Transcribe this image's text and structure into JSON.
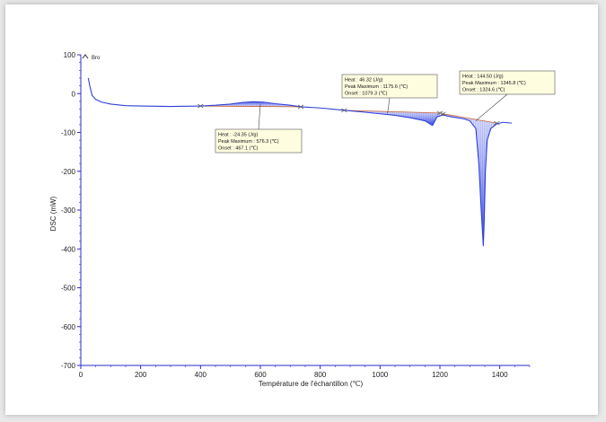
{
  "chart_data": {
    "type": "line",
    "title": "",
    "xlabel": "Température de l'échantillon (℃)",
    "ylabel": "DSC (mW)",
    "xlim": [
      0,
      1500
    ],
    "ylim": [
      -700,
      100
    ],
    "x_ticks": [
      0,
      200,
      400,
      600,
      800,
      1000,
      1200,
      1400
    ],
    "y_ticks": [
      100,
      0,
      -100,
      -200,
      -300,
      -400,
      -500,
      -600,
      -700
    ],
    "grid": false,
    "legend": {
      "position": "top-left",
      "entries": [
        "Bro"
      ]
    },
    "series": [
      {
        "name": "Bro",
        "color": "#2f3fd8",
        "points": [
          [
            25,
            40
          ],
          [
            30,
            20
          ],
          [
            38,
            -5
          ],
          [
            50,
            -15
          ],
          [
            70,
            -22
          ],
          [
            100,
            -27
          ],
          [
            150,
            -31
          ],
          [
            200,
            -32
          ],
          [
            300,
            -33
          ],
          [
            400,
            -32
          ],
          [
            450,
            -30
          ],
          [
            500,
            -27
          ],
          [
            540,
            -23
          ],
          [
            576,
            -21
          ],
          [
            610,
            -22
          ],
          [
            650,
            -26
          ],
          [
            700,
            -30
          ],
          [
            735,
            -34
          ],
          [
            800,
            -37
          ],
          [
            880,
            -43
          ],
          [
            950,
            -48
          ],
          [
            1000,
            -52
          ],
          [
            1050,
            -56
          ],
          [
            1100,
            -62
          ],
          [
            1150,
            -70
          ],
          [
            1175,
            -82
          ],
          [
            1180,
            -75
          ],
          [
            1190,
            -60
          ],
          [
            1210,
            -55
          ],
          [
            1240,
            -60
          ],
          [
            1280,
            -65
          ],
          [
            1300,
            -70
          ],
          [
            1320,
            -90
          ],
          [
            1330,
            -180
          ],
          [
            1338,
            -300
          ],
          [
            1345,
            -392
          ],
          [
            1348,
            -330
          ],
          [
            1352,
            -200
          ],
          [
            1358,
            -120
          ],
          [
            1370,
            -90
          ],
          [
            1390,
            -78
          ],
          [
            1410,
            -74
          ],
          [
            1440,
            -76
          ]
        ]
      }
    ],
    "peaks": [
      {
        "onset_x": 400,
        "end_x": 735,
        "baseline": [
          [
            400,
            -32
          ],
          [
            735,
            -34
          ]
        ],
        "heat": "Heat : -24.35 (J/g)",
        "peak_max": "Peak Maximum : 576.3 (℃)",
        "onset": "Onset : 467.1 (℃)",
        "direction": "up"
      },
      {
        "onset_x": 880,
        "end_x": 1200,
        "baseline": [
          [
            880,
            -43
          ],
          [
            1200,
            -50
          ]
        ],
        "heat": "Heat : 46.32 (J/g)",
        "peak_max": "Peak Maximum : 1175.6 (℃)",
        "onset": "Onset : 1079.3 (℃)",
        "direction": "down"
      },
      {
        "onset_x": 1210,
        "end_x": 1390,
        "baseline": [
          [
            1210,
            -52
          ],
          [
            1390,
            -76
          ]
        ],
        "heat": "Heat : 144.50 (J/g)",
        "peak_max": "Peak Maximum : 1345.8 (℃)",
        "onset": "Onset : 1324.6 (℃)",
        "direction": "down"
      }
    ],
    "colors": {
      "curve": "#2f3fd8",
      "fill": "#3a48e0",
      "baseline": "#c8602a",
      "axis": "#2b2bcc"
    }
  }
}
